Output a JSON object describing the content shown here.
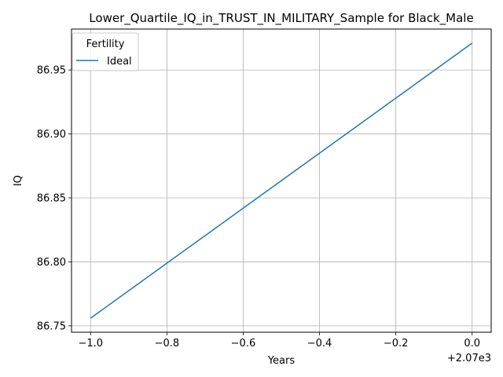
{
  "chart_data": {
    "type": "line",
    "title": "Lower_Quartile_IQ_in_TRUST_IN_MILITARY_Sample for Black_Male",
    "xlabel": "Years",
    "ylabel": "IQ",
    "x_offset_label": "+2.07e3",
    "xlim": [
      -1.05,
      0.05
    ],
    "ylim": [
      86.745,
      86.982
    ],
    "x_ticks": [
      -1.0,
      -0.8,
      -0.6,
      -0.4,
      -0.2,
      0.0
    ],
    "x_tick_labels": [
      "−1.0",
      "−0.8",
      "−0.6",
      "−0.4",
      "−0.2",
      "0.0"
    ],
    "y_ticks": [
      86.75,
      86.8,
      86.85,
      86.9,
      86.95
    ],
    "y_tick_labels": [
      "86.75",
      "86.80",
      "86.85",
      "86.90",
      "86.95"
    ],
    "grid": true,
    "legend": {
      "title": "Fertility",
      "position": "top-left"
    },
    "series": [
      {
        "name": "Ideal",
        "color": "#1f77b4",
        "x": [
          -1.0,
          0.0
        ],
        "y": [
          86.756,
          86.971
        ]
      }
    ]
  }
}
